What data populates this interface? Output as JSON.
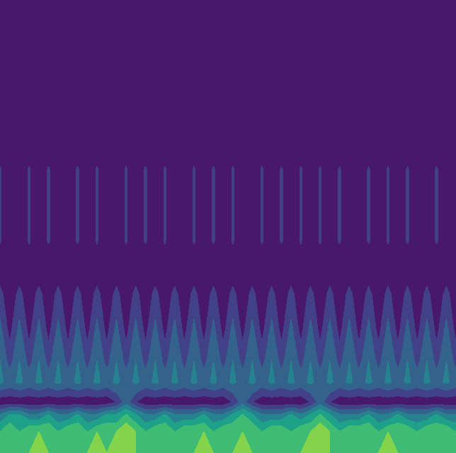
{
  "chart_data": {
    "type": "contourf",
    "x": [
      0,
      1,
      2,
      3,
      4,
      5,
      6,
      7,
      8,
      9,
      10,
      11,
      12,
      13,
      14,
      15,
      16,
      17,
      18,
      19,
      20,
      21,
      22,
      23,
      24,
      25,
      26,
      27,
      28,
      29,
      30,
      31,
      32,
      33,
      34,
      35,
      36,
      37,
      38,
      39,
      40,
      41,
      42,
      43,
      44,
      45,
      46,
      47
    ],
    "y": [
      0,
      30,
      55,
      72,
      100,
      130,
      175,
      225,
      260,
      300,
      400,
      440,
      640
    ],
    "z": [
      [
        5,
        6,
        6,
        6,
        7,
        6,
        6,
        6,
        6,
        6,
        7,
        6,
        7,
        7,
        6,
        6,
        6,
        6,
        6,
        6,
        6,
        7,
        6,
        6,
        6,
        7,
        6,
        6,
        6,
        6,
        6,
        6,
        7,
        7,
        6,
        6,
        6,
        6,
        6,
        6,
        7,
        6,
        6,
        6,
        6,
        6,
        6,
        5
      ],
      [
        5,
        6,
        5,
        6,
        6,
        6,
        5,
        6,
        6,
        5,
        6,
        6,
        6,
        7,
        6,
        5,
        6,
        6,
        5,
        6,
        6,
        6,
        5,
        6,
        6,
        6,
        6,
        5,
        6,
        6,
        5,
        6,
        6,
        7,
        6,
        5,
        6,
        6,
        6,
        5,
        6,
        6,
        6,
        5,
        6,
        6,
        6,
        5
      ],
      [
        3,
        4,
        4,
        3,
        3,
        4,
        3,
        3,
        4,
        3,
        3,
        4,
        4,
        5,
        4,
        3,
        3,
        4,
        3,
        3,
        3,
        4,
        3,
        3,
        4,
        5,
        4,
        3,
        3,
        3,
        4,
        3,
        4,
        5,
        4,
        3,
        3,
        3,
        4,
        3,
        3,
        4,
        3,
        3,
        3,
        4,
        3,
        3
      ],
      [
        0.3,
        0.3,
        0.3,
        0.3,
        0.3,
        0.3,
        0.3,
        0.3,
        0.3,
        0.3,
        0.3,
        0.3,
        1,
        2.5,
        1,
        0.3,
        0.3,
        0.3,
        0.3,
        0.3,
        0.3,
        0.3,
        0.3,
        0.3,
        1,
        2.5,
        1,
        0.3,
        0.3,
        0.3,
        0.3,
        0.3,
        1,
        2.5,
        1,
        0.3,
        0.3,
        0.3,
        0.3,
        0.3,
        0.3,
        0.3,
        0.3,
        0.3,
        0.3,
        0.3,
        0.3,
        0.3
      ],
      [
        3.2,
        2.6,
        3.2,
        2.6,
        3.2,
        2.6,
        3.2,
        2.6,
        3.2,
        2.6,
        3.2,
        2.6,
        3.2,
        2.6,
        3.2,
        2.6,
        3.2,
        2.6,
        3.2,
        2.6,
        3.2,
        2.6,
        3.2,
        2.6,
        3.2,
        2.6,
        3.2,
        2.6,
        3.2,
        2.6,
        3.2,
        2.6,
        3.2,
        2.6,
        3.2,
        2.6,
        3.2,
        2.6,
        3.2,
        2.6,
        3.2,
        2.6,
        3.2,
        2.6,
        3.2,
        2.6,
        3.2,
        2.6
      ],
      [
        3,
        1.6,
        3,
        1.6,
        3,
        1.6,
        3,
        1.6,
        3,
        1.6,
        3,
        1.6,
        3,
        1.6,
        3,
        1.6,
        3,
        1.6,
        3,
        1.6,
        3,
        1.6,
        3,
        1.6,
        3,
        1.6,
        3,
        1.6,
        3,
        1.6,
        3,
        1.6,
        3,
        1.6,
        3,
        1.6,
        3,
        1.6,
        3,
        1.6,
        3,
        1.6,
        3,
        1.6,
        3,
        1.6,
        3,
        1.6
      ],
      [
        2.3,
        0.6,
        2.3,
        0.6,
        2.3,
        0.6,
        2.3,
        0.6,
        2.3,
        0.6,
        2.3,
        0.6,
        2.3,
        0.6,
        2.3,
        0.6,
        2.3,
        0.6,
        2.3,
        0.6,
        2.3,
        0.6,
        2.3,
        0.6,
        2.3,
        0.6,
        2.3,
        0.6,
        2.3,
        0.6,
        2.3,
        0.6,
        2.3,
        0.6,
        2.3,
        0.6,
        2.3,
        0.6,
        2.3,
        0.6,
        2.3,
        0.6,
        2.3,
        0.6,
        2.3,
        0.6,
        2.3,
        0.6
      ],
      [
        1.3,
        0.3,
        1.3,
        0.3,
        1.3,
        0.3,
        1.3,
        0.3,
        1.3,
        0.3,
        1.3,
        0.3,
        1.3,
        0.3,
        1.3,
        0.3,
        1.3,
        0.3,
        1.3,
        0.3,
        1.3,
        0.3,
        1.3,
        0.3,
        1.3,
        0.3,
        1.3,
        0.3,
        1.3,
        0.3,
        1.3,
        0.3,
        1.3,
        0.3,
        1.3,
        0.3,
        1.3,
        0.3,
        1.3,
        0.3,
        1.3,
        0.3,
        1.3,
        0.3,
        1.3,
        0.3,
        1.3,
        0.3
      ],
      [
        0.3,
        0.3,
        0.3,
        0.3,
        0.3,
        0.3,
        0.3,
        0.3,
        0.3,
        0.3,
        0.3,
        0.3,
        0.3,
        0.3,
        0.3,
        0.3,
        0.3,
        0.3,
        0.3,
        0.3,
        0.3,
        0.3,
        0.3,
        0.3,
        0.3,
        0.3,
        0.3,
        0.3,
        0.3,
        0.3,
        0.3,
        0.3,
        0.3,
        0.3,
        0.3,
        0.3,
        0.3,
        0.3,
        0.3,
        0.3,
        0.3,
        0.3,
        0.3,
        0.3,
        0.3,
        0.3,
        0.3,
        0.3
      ],
      [
        1.1,
        0.3,
        0.3,
        1.1,
        0.3,
        1.1,
        0.3,
        0.3,
        1.1,
        0.3,
        1.1,
        0.3,
        0.3,
        1.1,
        0.3,
        1.1,
        0.3,
        1.1,
        0.3,
        0.3,
        1.1,
        0.3,
        1.1,
        0.3,
        1.1,
        0.3,
        0.3,
        1.1,
        0.3,
        1.1,
        0.3,
        1.1,
        0.3,
        1.1,
        0.3,
        1.1,
        0.3,
        0.3,
        1.1,
        0.3,
        1.1,
        0.3,
        1.1,
        0.3,
        0.3,
        1.1,
        0.3,
        0.3
      ],
      [
        1.1,
        0.3,
        0.3,
        1.1,
        0.3,
        1.1,
        0.3,
        0.3,
        1.1,
        0.3,
        1.1,
        0.3,
        0.3,
        1.1,
        0.3,
        1.1,
        0.3,
        1.1,
        0.3,
        0.3,
        1.1,
        0.3,
        1.1,
        0.3,
        1.1,
        0.3,
        0.3,
        1.1,
        0.3,
        1.1,
        0.3,
        1.1,
        0.3,
        1.1,
        0.3,
        1.1,
        0.3,
        0.3,
        1.1,
        0.3,
        1.1,
        0.3,
        1.1,
        0.3,
        0.3,
        1.1,
        0.3,
        0.3
      ],
      [
        0.3,
        0.3,
        0.3,
        0.3,
        0.3,
        0.3,
        0.3,
        0.3,
        0.3,
        0.3,
        0.3,
        0.3,
        0.3,
        0.3,
        0.3,
        0.3,
        0.3,
        0.3,
        0.3,
        0.3,
        0.3,
        0.3,
        0.3,
        0.3,
        0.3,
        0.3,
        0.3,
        0.3,
        0.3,
        0.3,
        0.3,
        0.3,
        0.3,
        0.3,
        0.3,
        0.3,
        0.3,
        0.3,
        0.3,
        0.3,
        0.3,
        0.3,
        0.3,
        0.3,
        0.3,
        0.3,
        0.3,
        0.3
      ],
      [
        0.3,
        0.3,
        0.3,
        0.3,
        0.3,
        0.3,
        0.3,
        0.3,
        0.3,
        0.3,
        0.3,
        0.3,
        0.3,
        0.3,
        0.3,
        0.3,
        0.3,
        0.3,
        0.3,
        0.3,
        0.3,
        0.3,
        0.3,
        0.3,
        0.3,
        0.3,
        0.3,
        0.3,
        0.3,
        0.3,
        0.3,
        0.3,
        0.3,
        0.3,
        0.3,
        0.3,
        0.3,
        0.3,
        0.3,
        0.3,
        0.3,
        0.3,
        0.3,
        0.3,
        0.3,
        0.3,
        0.3,
        0.3
      ]
    ],
    "levels": [
      0,
      1,
      2,
      3,
      4,
      5,
      6,
      7,
      8
    ],
    "tick_labels": false
  }
}
